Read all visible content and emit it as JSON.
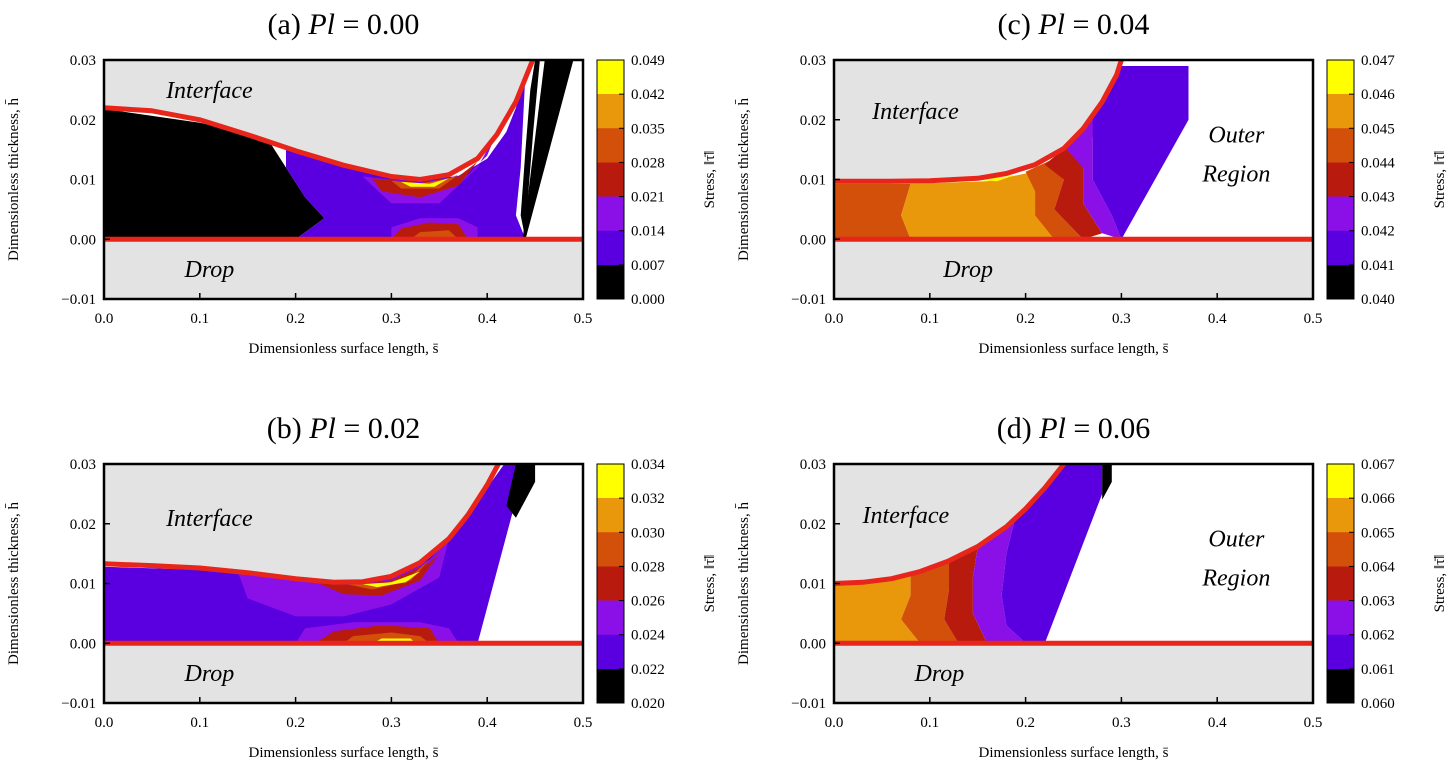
{
  "chart_data": [
    {
      "type": "heatmap",
      "title": "(a) Pl = 0.00",
      "title_parts": {
        "prefix": "(a) ",
        "var": "Pl",
        "rest": " = 0.00"
      },
      "xlabel": "Dimensionless surface length, s̄",
      "ylabel": "Dimensionless thickness, h̄",
      "xlim": [
        0,
        0.5
      ],
      "ylim": [
        -0.01,
        0.03
      ],
      "x_ticks": [
        "0.0",
        "0.1",
        "0.2",
        "0.3",
        "0.4",
        "0.5"
      ],
      "y_ticks": [
        "−0.01",
        "0.00",
        "0.01",
        "0.02",
        "0.03"
      ],
      "colorbar_label": "Stress, ‖τ̄‖",
      "colorbar_ticks": [
        "0.000",
        "0.007",
        "0.014",
        "0.021",
        "0.028",
        "0.035",
        "0.042",
        "0.049"
      ],
      "region_labels": [
        "Interface",
        "Drop"
      ],
      "interface_curve": [
        [
          0,
          0.022
        ],
        [
          0.05,
          0.0215
        ],
        [
          0.1,
          0.02
        ],
        [
          0.15,
          0.0175
        ],
        [
          0.2,
          0.0148
        ],
        [
          0.25,
          0.0124
        ],
        [
          0.3,
          0.0105
        ],
        [
          0.33,
          0.01
        ],
        [
          0.36,
          0.0108
        ],
        [
          0.39,
          0.0135
        ],
        [
          0.41,
          0.0175
        ],
        [
          0.43,
          0.023
        ],
        [
          0.445,
          0.029
        ],
        [
          0.45,
          0.031
        ]
      ],
      "outer_boundary": [
        [
          0.45,
          0.03
        ],
        [
          0.44,
          0.0
        ]
      ]
    },
    {
      "type": "heatmap",
      "title": "(b) Pl = 0.02",
      "title_parts": {
        "prefix": "(b) ",
        "var": "Pl",
        "rest": " = 0.02"
      },
      "xlabel": "Dimensionless surface length, s̄",
      "ylabel": "Dimensionless thickness, h̄",
      "xlim": [
        0,
        0.5
      ],
      "ylim": [
        -0.01,
        0.03
      ],
      "x_ticks": [
        "0.0",
        "0.1",
        "0.2",
        "0.3",
        "0.4",
        "0.5"
      ],
      "y_ticks": [
        "−0.01",
        "0.00",
        "0.01",
        "0.02",
        "0.03"
      ],
      "colorbar_label": "Stress, ‖τ̄‖",
      "colorbar_ticks": [
        "0.020",
        "0.022",
        "0.024",
        "0.026",
        "0.028",
        "0.030",
        "0.032",
        "0.034"
      ],
      "region_labels": [
        "Interface",
        "Drop"
      ],
      "interface_curve": [
        [
          0,
          0.0133
        ],
        [
          0.05,
          0.013
        ],
        [
          0.1,
          0.0126
        ],
        [
          0.15,
          0.0118
        ],
        [
          0.2,
          0.0108
        ],
        [
          0.24,
          0.0102
        ],
        [
          0.27,
          0.0103
        ],
        [
          0.3,
          0.0112
        ],
        [
          0.33,
          0.0135
        ],
        [
          0.36,
          0.0175
        ],
        [
          0.38,
          0.0215
        ],
        [
          0.4,
          0.0265
        ],
        [
          0.415,
          0.031
        ]
      ],
      "outer_boundary": [
        [
          0.44,
          0.03
        ],
        [
          0.39,
          0.0
        ]
      ]
    },
    {
      "type": "heatmap",
      "title": "(c) Pl = 0.04",
      "title_parts": {
        "prefix": "(c) ",
        "var": "Pl",
        "rest": " = 0.04"
      },
      "xlabel": "Dimensionless surface length, s̄",
      "ylabel": "Dimensionless thickness, h̄",
      "xlim": [
        0,
        0.5
      ],
      "ylim": [
        -0.01,
        0.03
      ],
      "x_ticks": [
        "0.0",
        "0.1",
        "0.2",
        "0.3",
        "0.4",
        "0.5"
      ],
      "y_ticks": [
        "−0.01",
        "0.00",
        "0.01",
        "0.02",
        "0.03"
      ],
      "colorbar_label": "Stress, ‖τ̄‖",
      "colorbar_ticks": [
        "0.040",
        "0.041",
        "0.042",
        "0.043",
        "0.044",
        "0.045",
        "0.046",
        "0.047"
      ],
      "region_labels": [
        "Interface",
        "Outer",
        "Region",
        "Drop"
      ],
      "interface_curve": [
        [
          0,
          0.0097
        ],
        [
          0.05,
          0.0097
        ],
        [
          0.1,
          0.0098
        ],
        [
          0.15,
          0.0102
        ],
        [
          0.18,
          0.011
        ],
        [
          0.21,
          0.0125
        ],
        [
          0.24,
          0.0152
        ],
        [
          0.26,
          0.0185
        ],
        [
          0.28,
          0.023
        ],
        [
          0.295,
          0.0275
        ],
        [
          0.3,
          0.03
        ]
      ],
      "outer_boundary": [
        [
          0.37,
          0.029
        ],
        [
          0.3,
          0.0
        ]
      ]
    },
    {
      "type": "heatmap",
      "title": "(d) Pl = 0.06",
      "title_parts": {
        "prefix": "(d) ",
        "var": "Pl",
        "rest": " = 0.06"
      },
      "xlabel": "Dimensionless surface length, s̄",
      "ylabel": "Dimensionless thickness, h̄",
      "xlim": [
        0,
        0.5
      ],
      "ylim": [
        -0.01,
        0.03
      ],
      "x_ticks": [
        "0.0",
        "0.1",
        "0.2",
        "0.3",
        "0.4",
        "0.5"
      ],
      "y_ticks": [
        "−0.01",
        "0.00",
        "0.01",
        "0.02",
        "0.03"
      ],
      "colorbar_label": "Stress, ‖τ̄‖",
      "colorbar_ticks": [
        "0.060",
        "0.061",
        "0.062",
        "0.063",
        "0.064",
        "0.065",
        "0.066",
        "0.067"
      ],
      "region_labels": [
        "Interface",
        "Outer",
        "Region",
        "Drop"
      ],
      "interface_curve": [
        [
          0,
          0.01
        ],
        [
          0.03,
          0.0102
        ],
        [
          0.06,
          0.0108
        ],
        [
          0.09,
          0.012
        ],
        [
          0.12,
          0.0138
        ],
        [
          0.15,
          0.0162
        ],
        [
          0.18,
          0.0195
        ],
        [
          0.2,
          0.0225
        ],
        [
          0.22,
          0.026
        ],
        [
          0.24,
          0.03
        ]
      ],
      "outer_boundary": [
        [
          0.29,
          0.03
        ],
        [
          0.22,
          0.0
        ]
      ]
    }
  ],
  "colors": {
    "interface_fill": "#e3e3e3",
    "boundary_line": "#e8251b",
    "colormap": [
      "#000000",
      "#5a00e0",
      "#8b10e8",
      "#b81b0e",
      "#d2500a",
      "#e8980a",
      "#ffff00"
    ]
  }
}
